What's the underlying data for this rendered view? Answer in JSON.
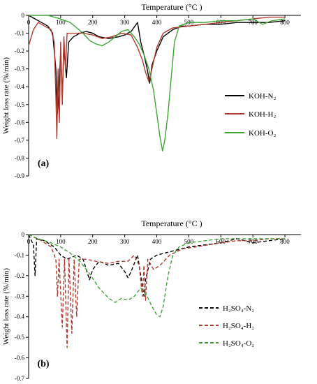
{
  "chart_data": [
    {
      "type": "line",
      "panel_label": "(a)",
      "title": "Temperature (°C )",
      "ylabel": "Weight loss rate (%/min)",
      "xlim": [
        0,
        850
      ],
      "ylim": [
        -0.9,
        0
      ],
      "xticks": [
        0,
        100,
        200,
        300,
        400,
        500,
        600,
        700,
        800
      ],
      "yticks": [
        0,
        -0.1,
        -0.2,
        -0.3,
        -0.4,
        -0.5,
        -0.6,
        -0.7,
        -0.8,
        -0.9
      ],
      "ytick_labels": [
        "0",
        "-0.1",
        "-0.2",
        "-0.3",
        "-0.4",
        "-0.5",
        "-0.6",
        "-0.7",
        "-0.8",
        "-0.9"
      ],
      "legend_position": "right",
      "series": [
        {
          "name": "KOH-N₂",
          "color": "#000000",
          "dash": "solid",
          "points": [
            [
              0,
              0
            ],
            [
              40,
              -0.04
            ],
            [
              60,
              -0.06
            ],
            [
              75,
              -0.1
            ],
            [
              85,
              -0.3
            ],
            [
              90,
              -0.55
            ],
            [
              95,
              -0.4
            ],
            [
              100,
              -0.2
            ],
            [
              105,
              -0.45
            ],
            [
              110,
              -0.18
            ],
            [
              118,
              -0.35
            ],
            [
              125,
              -0.15
            ],
            [
              140,
              -0.12
            ],
            [
              160,
              -0.1
            ],
            [
              180,
              -0.09
            ],
            [
              200,
              -0.1
            ],
            [
              220,
              -0.12
            ],
            [
              250,
              -0.13
            ],
            [
              280,
              -0.12
            ],
            [
              300,
              -0.11
            ],
            [
              320,
              -0.09
            ],
            [
              340,
              -0.04
            ],
            [
              350,
              -0.15
            ],
            [
              360,
              -0.22
            ],
            [
              370,
              -0.3
            ],
            [
              378,
              -0.38
            ],
            [
              385,
              -0.28
            ],
            [
              400,
              -0.2
            ],
            [
              420,
              -0.12
            ],
            [
              450,
              -0.08
            ],
            [
              480,
              -0.06
            ],
            [
              500,
              -0.06
            ],
            [
              550,
              -0.05
            ],
            [
              600,
              -0.05
            ],
            [
              650,
              -0.04
            ],
            [
              700,
              -0.04
            ],
            [
              750,
              -0.04
            ],
            [
              800,
              -0.03
            ]
          ]
        },
        {
          "name": "KOH-H₂",
          "color": "#b03a2e",
          "dash": "solid",
          "points": [
            [
              0,
              -0.17
            ],
            [
              15,
              -0.08
            ],
            [
              30,
              -0.04
            ],
            [
              50,
              -0.06
            ],
            [
              70,
              -0.08
            ],
            [
              80,
              -0.15
            ],
            [
              85,
              -0.45
            ],
            [
              88,
              -0.69
            ],
            [
              92,
              -0.3
            ],
            [
              96,
              -0.6
            ],
            [
              100,
              -0.15
            ],
            [
              105,
              -0.5
            ],
            [
              110,
              -0.12
            ],
            [
              115,
              -0.3
            ],
            [
              120,
              -0.1
            ],
            [
              140,
              -0.1
            ],
            [
              170,
              -0.1
            ],
            [
              200,
              -0.11
            ],
            [
              230,
              -0.13
            ],
            [
              260,
              -0.12
            ],
            [
              290,
              -0.1
            ],
            [
              320,
              -0.11
            ],
            [
              340,
              -0.18
            ],
            [
              355,
              -0.25
            ],
            [
              365,
              -0.32
            ],
            [
              375,
              -0.37
            ],
            [
              385,
              -0.3
            ],
            [
              400,
              -0.18
            ],
            [
              420,
              -0.1
            ],
            [
              450,
              -0.07
            ],
            [
              500,
              -0.06
            ],
            [
              550,
              -0.05
            ],
            [
              600,
              -0.04
            ],
            [
              650,
              -0.03
            ],
            [
              700,
              -0.02
            ],
            [
              750,
              -0.01
            ],
            [
              800,
              -0.01
            ]
          ]
        },
        {
          "name": "KOH-O₂",
          "color": "#3fa535",
          "dash": "solid",
          "points": [
            [
              0,
              0
            ],
            [
              60,
              0
            ],
            [
              100,
              -0.02
            ],
            [
              130,
              -0.04
            ],
            [
              150,
              -0.07
            ],
            [
              170,
              -0.1
            ],
            [
              190,
              -0.14
            ],
            [
              210,
              -0.16
            ],
            [
              230,
              -0.17
            ],
            [
              250,
              -0.15
            ],
            [
              270,
              -0.12
            ],
            [
              290,
              -0.09
            ],
            [
              310,
              -0.08
            ],
            [
              330,
              -0.12
            ],
            [
              345,
              -0.16
            ],
            [
              360,
              -0.22
            ],
            [
              375,
              -0.3
            ],
            [
              390,
              -0.42
            ],
            [
              400,
              -0.55
            ],
            [
              410,
              -0.68
            ],
            [
              418,
              -0.76
            ],
            [
              425,
              -0.7
            ],
            [
              435,
              -0.55
            ],
            [
              445,
              -0.35
            ],
            [
              455,
              -0.15
            ],
            [
              470,
              -0.06
            ],
            [
              500,
              -0.04
            ],
            [
              550,
              -0.04
            ],
            [
              600,
              -0.03
            ],
            [
              650,
              -0.03
            ],
            [
              700,
              -0.02
            ],
            [
              730,
              -0.05
            ],
            [
              760,
              -0.03
            ],
            [
              800,
              -0.02
            ]
          ]
        }
      ]
    },
    {
      "type": "line",
      "panel_label": "(b)",
      "title": "Temperature (°C )",
      "ylabel": "Weight loss rate (%/min)",
      "xlim": [
        0,
        850
      ],
      "ylim": [
        -0.7,
        0
      ],
      "xticks": [
        0,
        100,
        200,
        300,
        400,
        500,
        600,
        700,
        800
      ],
      "yticks": [
        0,
        -0.1,
        -0.2,
        -0.3,
        -0.4,
        -0.5,
        -0.6,
        -0.7
      ],
      "ytick_labels": [
        "0",
        "-0.1",
        "-0.2",
        "-0.3",
        "-0.4",
        "-0.5",
        "-0.6",
        "-0.7"
      ],
      "legend_position": "right",
      "series": [
        {
          "name": "H₂SO₄-N₂",
          "color": "#000000",
          "dash": "5,3",
          "points": [
            [
              0,
              0
            ],
            [
              15,
              -0.05
            ],
            [
              20,
              -0.2
            ],
            [
              25,
              -0.02
            ],
            [
              50,
              -0.03
            ],
            [
              80,
              -0.06
            ],
            [
              100,
              -0.1
            ],
            [
              120,
              -0.12
            ],
            [
              150,
              -0.1
            ],
            [
              170,
              -0.12
            ],
            [
              190,
              -0.22
            ],
            [
              200,
              -0.17
            ],
            [
              220,
              -0.13
            ],
            [
              250,
              -0.15
            ],
            [
              280,
              -0.14
            ],
            [
              300,
              -0.18
            ],
            [
              310,
              -0.21
            ],
            [
              320,
              -0.18
            ],
            [
              340,
              -0.1
            ],
            [
              350,
              -0.2
            ],
            [
              360,
              -0.3
            ],
            [
              365,
              -0.22
            ],
            [
              380,
              -0.12
            ],
            [
              400,
              -0.1
            ],
            [
              450,
              -0.08
            ],
            [
              500,
              -0.06
            ],
            [
              550,
              -0.05
            ],
            [
              600,
              -0.04
            ],
            [
              650,
              -0.02
            ],
            [
              700,
              -0.04
            ],
            [
              750,
              -0.03
            ],
            [
              800,
              -0.02
            ]
          ]
        },
        {
          "name": "H₂SO₄-H₂",
          "color": "#b03a2e",
          "dash": "5,3",
          "points": [
            [
              0,
              0
            ],
            [
              40,
              -0.03
            ],
            [
              70,
              -0.06
            ],
            [
              85,
              -0.12
            ],
            [
              90,
              -0.3
            ],
            [
              95,
              -0.12
            ],
            [
              105,
              -0.45
            ],
            [
              112,
              -0.12
            ],
            [
              120,
              -0.55
            ],
            [
              126,
              -0.12
            ],
            [
              135,
              -0.48
            ],
            [
              142,
              -0.12
            ],
            [
              150,
              -0.4
            ],
            [
              158,
              -0.12
            ],
            [
              180,
              -0.12
            ],
            [
              210,
              -0.13
            ],
            [
              250,
              -0.14
            ],
            [
              280,
              -0.13
            ],
            [
              310,
              -0.13
            ],
            [
              330,
              -0.1
            ],
            [
              345,
              -0.15
            ],
            [
              355,
              -0.3
            ],
            [
              360,
              -0.15
            ],
            [
              365,
              -0.32
            ],
            [
              372,
              -0.12
            ],
            [
              390,
              -0.17
            ],
            [
              410,
              -0.15
            ],
            [
              440,
              -0.1
            ],
            [
              480,
              -0.07
            ],
            [
              520,
              -0.06
            ],
            [
              560,
              -0.05
            ],
            [
              600,
              -0.04
            ],
            [
              650,
              -0.03
            ],
            [
              700,
              -0.03
            ],
            [
              750,
              -0.02
            ],
            [
              800,
              -0.02
            ]
          ]
        },
        {
          "name": "H₂SO₄-O₂",
          "color": "#3fa535",
          "dash": "5,3",
          "points": [
            [
              0,
              0
            ],
            [
              30,
              -0.02
            ],
            [
              70,
              -0.04
            ],
            [
              100,
              -0.06
            ],
            [
              130,
              -0.09
            ],
            [
              160,
              -0.13
            ],
            [
              190,
              -0.19
            ],
            [
              220,
              -0.26
            ],
            [
              250,
              -0.31
            ],
            [
              270,
              -0.33
            ],
            [
              290,
              -0.31
            ],
            [
              310,
              -0.32
            ],
            [
              330,
              -0.3
            ],
            [
              350,
              -0.26
            ],
            [
              370,
              -0.3
            ],
            [
              385,
              -0.35
            ],
            [
              400,
              -0.39
            ],
            [
              410,
              -0.4
            ],
            [
              420,
              -0.35
            ],
            [
              435,
              -0.2
            ],
            [
              450,
              -0.1
            ],
            [
              470,
              -0.06
            ],
            [
              500,
              -0.04
            ],
            [
              550,
              -0.03
            ],
            [
              600,
              -0.02
            ],
            [
              650,
              -0.02
            ],
            [
              700,
              -0.02
            ],
            [
              750,
              -0.02
            ],
            [
              800,
              -0.02
            ]
          ]
        }
      ]
    }
  ]
}
